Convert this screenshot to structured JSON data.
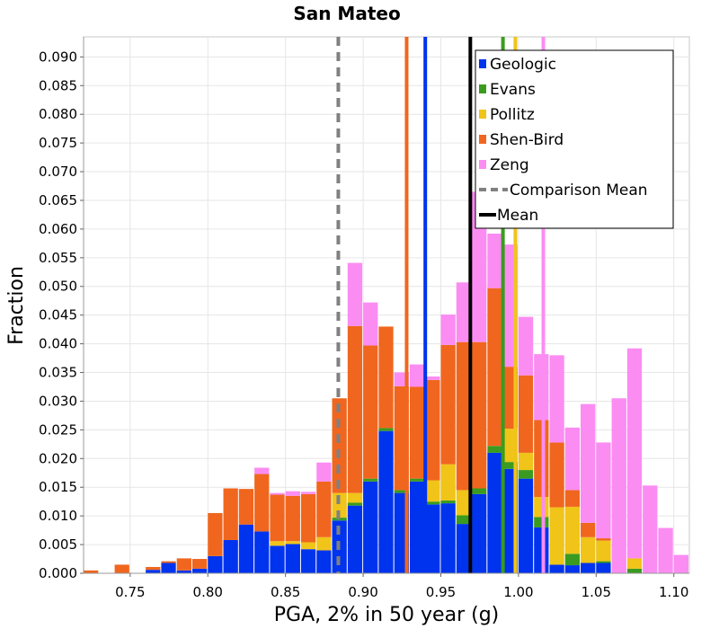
{
  "chart_data": {
    "type": "bar",
    "stacked": true,
    "title": "San Mateo",
    "xlabel": "PGA, 2% in 50 year (g)",
    "ylabel": "Fraction",
    "xlim": [
      0.72,
      1.11
    ],
    "ylim": [
      0,
      0.0935
    ],
    "grid": true,
    "legend_position": "top-right",
    "bin_width": 0.01,
    "x_ticks": [
      {
        "value": 0.75,
        "label": "0.75"
      },
      {
        "value": 0.8,
        "label": "0.80"
      },
      {
        "value": 0.85,
        "label": "0.85"
      },
      {
        "value": 0.9,
        "label": "0.90"
      },
      {
        "value": 0.95,
        "label": "0.95"
      },
      {
        "value": 1.0,
        "label": "1.00"
      },
      {
        "value": 1.05,
        "label": "1.05"
      },
      {
        "value": 1.1,
        "label": "1.10"
      }
    ],
    "y_ticks": [
      {
        "value": 0.0,
        "label": "0.000"
      },
      {
        "value": 0.005,
        "label": "0.005"
      },
      {
        "value": 0.01,
        "label": "0.010"
      },
      {
        "value": 0.015,
        "label": "0.015"
      },
      {
        "value": 0.02,
        "label": "0.020"
      },
      {
        "value": 0.025,
        "label": "0.025"
      },
      {
        "value": 0.03,
        "label": "0.030"
      },
      {
        "value": 0.035,
        "label": "0.035"
      },
      {
        "value": 0.04,
        "label": "0.040"
      },
      {
        "value": 0.045,
        "label": "0.045"
      },
      {
        "value": 0.05,
        "label": "0.050"
      },
      {
        "value": 0.055,
        "label": "0.055"
      },
      {
        "value": 0.06,
        "label": "0.060"
      },
      {
        "value": 0.065,
        "label": "0.065"
      },
      {
        "value": 0.07,
        "label": "0.070"
      },
      {
        "value": 0.075,
        "label": "0.075"
      },
      {
        "value": 0.08,
        "label": "0.080"
      },
      {
        "value": 0.085,
        "label": "0.085"
      },
      {
        "value": 0.09,
        "label": "0.090"
      }
    ],
    "x": [
      0.725,
      0.745,
      0.765,
      0.775,
      0.785,
      0.795,
      0.805,
      0.815,
      0.825,
      0.835,
      0.845,
      0.855,
      0.865,
      0.875,
      0.885,
      0.895,
      0.905,
      0.915,
      0.925,
      0.935,
      0.945,
      0.955,
      0.965,
      0.975,
      0.985,
      0.995,
      1.005,
      1.015,
      1.025,
      1.035,
      1.045,
      1.055,
      1.065,
      1.075,
      1.085,
      1.095,
      1.105
    ],
    "series": [
      {
        "name": "Geologic",
        "color": "#0033ee",
        "values": [
          0.0,
          0.0,
          0.0006,
          0.0018,
          0.0005,
          0.0008,
          0.003,
          0.0058,
          0.0085,
          0.0073,
          0.0048,
          0.0051,
          0.0042,
          0.004,
          0.0092,
          0.0118,
          0.016,
          0.0248,
          0.014,
          0.016,
          0.012,
          0.0122,
          0.0086,
          0.0138,
          0.021,
          0.0182,
          0.0165,
          0.008,
          0.0015,
          0.0014,
          0.0018,
          0.0018,
          0.0,
          0.0,
          0.0,
          0.0,
          0.0
        ]
      },
      {
        "name": "Evans",
        "color": "#3a9b20",
        "values": [
          0.0,
          0.0,
          0.0,
          0.0,
          0.0,
          0.0,
          0.0,
          0.0,
          0.0,
          0.0,
          0.0,
          0.0,
          0.0,
          0.0,
          0.0005,
          0.0005,
          0.0005,
          0.0005,
          0.0005,
          0.0005,
          0.0005,
          0.0005,
          0.0015,
          0.001,
          0.0012,
          0.0012,
          0.0015,
          0.0018,
          0.0,
          0.002,
          0.0,
          0.0003,
          0.0,
          0.0008,
          0.0,
          0.0,
          0.0
        ]
      },
      {
        "name": "Pollitz",
        "color": "#f0c418",
        "values": [
          0.0,
          0.0,
          0.0,
          0.0,
          0.0,
          0.0,
          0.0,
          0.0,
          0.0,
          0.0,
          0.0008,
          0.0005,
          0.0012,
          0.0023,
          0.0043,
          0.0017,
          0.0,
          0.0,
          0.0,
          0.0,
          0.0037,
          0.0063,
          0.0044,
          0.0,
          0.0,
          0.0058,
          0.003,
          0.0035,
          0.01,
          0.0082,
          0.0045,
          0.0036,
          0.0,
          0.0018,
          0.0,
          0.0,
          0.0
        ]
      },
      {
        "name": "Shen-Bird",
        "color": "#f0661e",
        "values": [
          0.0005,
          0.0015,
          0.0005,
          0.0003,
          0.0021,
          0.0017,
          0.0075,
          0.009,
          0.0062,
          0.01,
          0.0081,
          0.0079,
          0.0084,
          0.0097,
          0.0165,
          0.0291,
          0.0232,
          0.0177,
          0.0181,
          0.016,
          0.0175,
          0.0208,
          0.0258,
          0.0255,
          0.0275,
          0.0108,
          0.0135,
          0.0134,
          0.0113,
          0.0029,
          0.0025,
          0.0004,
          0.0,
          0.0,
          0.0,
          0.0,
          0.0
        ]
      },
      {
        "name": "Zeng",
        "color": "#fb8cf2",
        "values": [
          0.0,
          0.0,
          0.0,
          0.0,
          0.0,
          0.0,
          0.0,
          0.0,
          0.0,
          0.0011,
          0.0003,
          0.0008,
          0.0004,
          0.0033,
          0.0,
          0.011,
          0.0075,
          0.0,
          0.0024,
          0.0039,
          0.0006,
          0.0053,
          0.0104,
          0.0262,
          0.0095,
          0.0213,
          0.0102,
          0.0115,
          0.0152,
          0.0109,
          0.0207,
          0.0167,
          0.0305,
          0.0366,
          0.0153,
          0.0079,
          0.0032
        ]
      }
    ],
    "reference_lines": [
      {
        "name": "Comparison Mean",
        "x": 0.884,
        "color": "#808080",
        "style": "dashed"
      },
      {
        "name": "Mean",
        "x": 0.969,
        "color": "#000000",
        "style": "solid"
      },
      {
        "name": "Shen-Bird",
        "x": 0.928,
        "color": "#f0661e",
        "style": "solid"
      },
      {
        "name": "Geologic",
        "x": 0.94,
        "color": "#0033ee",
        "style": "solid"
      },
      {
        "name": "Evans",
        "x": 0.99,
        "color": "#3a9b20",
        "style": "solid"
      },
      {
        "name": "Pollitz",
        "x": 0.998,
        "color": "#f0c418",
        "style": "solid"
      },
      {
        "name": "Zeng",
        "x": 1.016,
        "color": "#fb8cf2",
        "style": "solid"
      }
    ],
    "legend": [
      {
        "label": "Geologic",
        "kind": "box",
        "color": "#0033ee"
      },
      {
        "label": "Evans",
        "kind": "box",
        "color": "#3a9b20"
      },
      {
        "label": "Pollitz",
        "kind": "box",
        "color": "#f0c418"
      },
      {
        "label": "Shen-Bird",
        "kind": "box",
        "color": "#f0661e"
      },
      {
        "label": "Zeng",
        "kind": "box",
        "color": "#fb8cf2"
      },
      {
        "label": "Comparison Mean",
        "kind": "dash",
        "color": "#808080"
      },
      {
        "label": "Mean",
        "kind": "line",
        "color": "#000000"
      }
    ]
  }
}
